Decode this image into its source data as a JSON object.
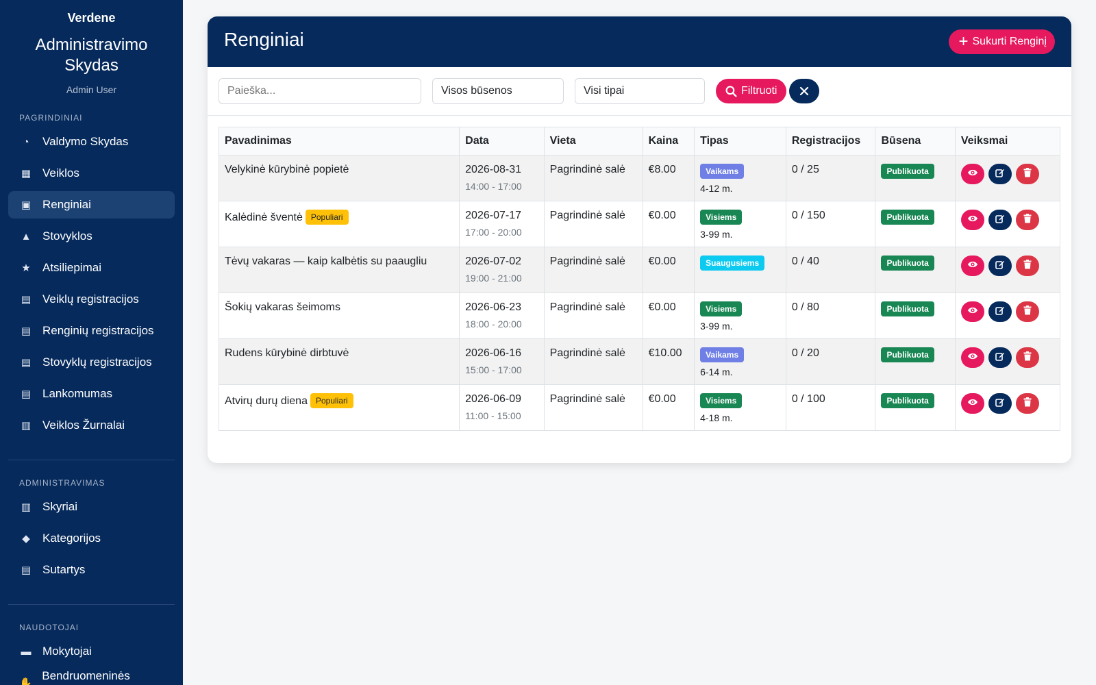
{
  "sidebar": {
    "brand": "Verdene",
    "title": "Administravimo Skydas",
    "user": "Admin User",
    "sections": [
      {
        "heading": "PAGRINDINIAI",
        "items": [
          {
            "label": "Valdymo Skydas",
            "icon": "gauge-icon",
            "glyph": "◔"
          },
          {
            "label": "Veiklos",
            "icon": "calendar-icon",
            "glyph": "▦"
          },
          {
            "label": "Renginiai",
            "icon": "calendar-day-icon",
            "glyph": "▣",
            "active": true
          },
          {
            "label": "Stovyklos",
            "icon": "campground-icon",
            "glyph": "▲"
          },
          {
            "label": "Atsiliepimai",
            "icon": "star-icon",
            "glyph": "★"
          },
          {
            "label": "Veiklų registracijos",
            "icon": "clipboard-icon",
            "glyph": "▤"
          },
          {
            "label": "Renginių registracijos",
            "icon": "clipboard-check-icon",
            "glyph": "▤"
          },
          {
            "label": "Stovyklų registracijos",
            "icon": "clipboard-list-icon",
            "glyph": "▤"
          },
          {
            "label": "Lankomumas",
            "icon": "clipboard-user-icon",
            "glyph": "▤"
          },
          {
            "label": "Veiklos Žurnalai",
            "icon": "book-icon",
            "glyph": "▥"
          }
        ]
      },
      {
        "heading": "ADMINISTRAVIMAS",
        "items": [
          {
            "label": "Skyriai",
            "icon": "building-icon",
            "glyph": "▥"
          },
          {
            "label": "Kategorijos",
            "icon": "tags-icon",
            "glyph": "◆"
          },
          {
            "label": "Sutartys",
            "icon": "file-contract-icon",
            "glyph": "▤"
          }
        ]
      },
      {
        "heading": "NAUDOTOJAI",
        "items": [
          {
            "label": "Mokytojai",
            "icon": "chalkboard-teacher-icon",
            "glyph": "▬"
          },
          {
            "label": "Bendruomeninės valandos",
            "icon": "handshake-icon",
            "glyph": "✋"
          }
        ]
      }
    ]
  },
  "main": {
    "title": "Renginiai",
    "create_label": "Sukurti Renginį",
    "search_placeholder": "Paieška...",
    "status_select": "Visos būsenos",
    "type_select": "Visi tipai",
    "filter_label": "Filtruoti",
    "columns": [
      "Pavadinimas",
      "Data",
      "Vieta",
      "Kaina",
      "Tipas",
      "Registracijos",
      "Būsena",
      "Veiksmai"
    ],
    "rows": [
      {
        "name": "Velykinė kūrybinė popietė",
        "popular": "",
        "date": "2026-08-31",
        "time": "14:00 - 17:00",
        "place": "Pagrindinė salė",
        "price": "€8.00",
        "type": "Vaikams",
        "type_color": "#6f7fe6",
        "age": "4-12 m.",
        "reg": "0 / 25",
        "status": "Publikuota"
      },
      {
        "name": "Kalėdinė šventė",
        "popular": "Populiari",
        "date": "2026-07-17",
        "time": "17:00 - 20:00",
        "place": "Pagrindinė salė",
        "price": "€0.00",
        "type": "Visiems",
        "type_color": "#198754",
        "age": "3-99 m.",
        "reg": "0 / 150",
        "status": "Publikuota"
      },
      {
        "name": "Tėvų vakaras — kaip kalbėtis su paaugliu",
        "popular": "",
        "date": "2026-07-02",
        "time": "19:00 - 21:00",
        "place": "Pagrindinė salė",
        "price": "€0.00",
        "type": "Suaugusiems",
        "type_color": "#0dcaf0",
        "age": "",
        "reg": "0 / 40",
        "status": "Publikuota"
      },
      {
        "name": "Šokių vakaras šeimoms",
        "popular": "",
        "date": "2026-06-23",
        "time": "18:00 - 20:00",
        "place": "Pagrindinė salė",
        "price": "€0.00",
        "type": "Visiems",
        "type_color": "#198754",
        "age": "3-99 m.",
        "reg": "0 / 80",
        "status": "Publikuota"
      },
      {
        "name": "Rudens kūrybinė dirbtuvė",
        "popular": "",
        "date": "2026-06-16",
        "time": "15:00 - 17:00",
        "place": "Pagrindinė salė",
        "price": "€10.00",
        "type": "Vaikams",
        "type_color": "#6f7fe6",
        "age": "6-14 m.",
        "reg": "0 / 20",
        "status": "Publikuota"
      },
      {
        "name": "Atvirų durų diena",
        "popular": "Populiari",
        "date": "2026-06-09",
        "time": "11:00 - 15:00",
        "place": "Pagrindinė salė",
        "price": "€0.00",
        "type": "Visiems",
        "type_color": "#198754",
        "age": "4-18 m.",
        "reg": "0 / 100",
        "status": "Publikuota"
      }
    ]
  }
}
